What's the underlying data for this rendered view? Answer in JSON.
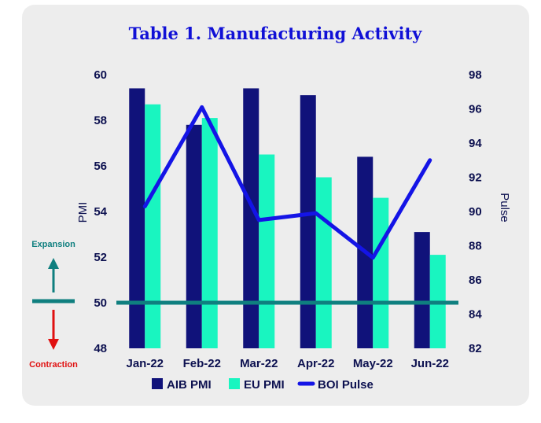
{
  "chart_data": {
    "type": "bar",
    "title": "Table 1. Manufacturing Activity",
    "categories": [
      "Jan-22",
      "Feb-22",
      "Mar-22",
      "Apr-22",
      "May-22",
      "Jun-22"
    ],
    "series": [
      {
        "name": "AIB PMI",
        "kind": "bar",
        "axis": "left",
        "color": "#10127a",
        "values": [
          59.4,
          57.8,
          59.4,
          59.1,
          56.4,
          53.1
        ]
      },
      {
        "name": "EU PMI",
        "kind": "bar",
        "axis": "left",
        "color": "#19f5c0",
        "values": [
          58.7,
          58.1,
          56.5,
          55.5,
          54.6,
          52.1
        ]
      },
      {
        "name": "BOI Pulse",
        "kind": "line",
        "axis": "right",
        "color": "#1414e6",
        "values": [
          90.3,
          96.1,
          89.5,
          89.9,
          87.3,
          93.0
        ]
      }
    ],
    "ylabel": "PMI",
    "y2label": "Pulse",
    "ylim": [
      48,
      60
    ],
    "yticks": [
      "48",
      "50",
      "52",
      "54",
      "56",
      "58",
      "60"
    ],
    "y2lim": [
      82,
      98
    ],
    "y2ticks": [
      "82",
      "84",
      "86",
      "88",
      "90",
      "92",
      "94",
      "96",
      "98"
    ],
    "reference_line": {
      "value": 50,
      "color": "#0f7f7f"
    },
    "annotations": {
      "expansion": {
        "text": "Expansion",
        "color": "#0f7f7f"
      },
      "contraction": {
        "text": "Contraction",
        "color": "#e01010"
      }
    },
    "legend": {
      "position": "bottom",
      "labels": [
        "AIB PMI",
        "EU PMI",
        "BOI Pulse"
      ]
    },
    "grid": false
  }
}
